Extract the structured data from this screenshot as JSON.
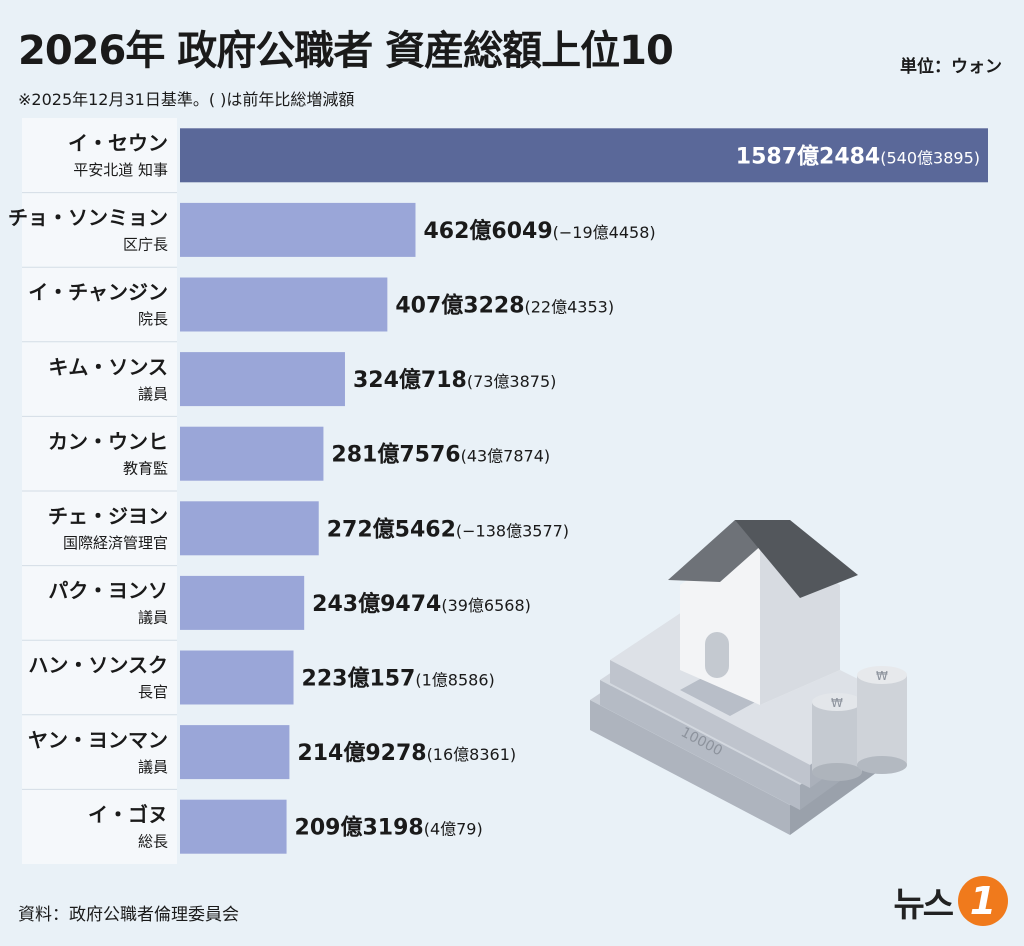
{
  "header": {
    "title": "2026年 政府公職者 資産総額上位10",
    "unit": "単位：ウォン",
    "note": "※2025年12月31日基準。( )は前年比総増減額"
  },
  "footer": {
    "source": "資料：政府公職者倫理委員会",
    "logo_text": "뉴스",
    "logo_badge": "1"
  },
  "illustration": {
    "banknote_label": "10000",
    "coin_symbol": "₩"
  },
  "colors": {
    "top_bar": "#5a6899",
    "bar": "#9aa6d8"
  },
  "chart_data": {
    "type": "bar",
    "orientation": "horizontal",
    "title": "2026年 政府公職者 資産総額上位10",
    "unit": "ウォン",
    "categories": [
      "イ・セウン 平安北道 知事",
      "チョ・ソンミョン 区庁長",
      "イ・チャンジン 院長",
      "キム・ソンス 議員",
      "カン・ウンヒ 教育監",
      "チェ・ジヨン 国際経済管理官",
      "パク・ヨンソ 議員",
      "ハン・ソンスク 長官",
      "ヤン・ヨンマン 議員",
      "イ・ゴヌ 総長"
    ],
    "rows": [
      {
        "name": "イ・セウン",
        "position": "平安北道 知事",
        "value": 1587.2484,
        "label": "1587億2484",
        "change": "(540億3895)"
      },
      {
        "name": "チョ・ソンミョン",
        "position": "区庁長",
        "value": 462.6049,
        "label": "462億6049",
        "change": "(−19億4458)"
      },
      {
        "name": "イ・チャンジン",
        "position": "院長",
        "value": 407.3228,
        "label": "407億3228",
        "change": "(22億4353)"
      },
      {
        "name": "キム・ソンス",
        "position": "議員",
        "value": 324.0718,
        "label": "324億718",
        "change": "(73億3875)"
      },
      {
        "name": "カン・ウンヒ",
        "position": "教育監",
        "value": 281.7576,
        "label": "281億7576",
        "change": "(43億7874)"
      },
      {
        "name": "チェ・ジヨン",
        "position": "国際経済管理官",
        "value": 272.5462,
        "label": "272億5462",
        "change": "(−138億3577)"
      },
      {
        "name": "パク・ヨンソ",
        "position": "議員",
        "value": 243.9474,
        "label": "243億9474",
        "change": "(39億6568)"
      },
      {
        "name": "ハン・ソンスク",
        "position": "長官",
        "value": 223.0157,
        "label": "223億157",
        "change": "(1億8586)"
      },
      {
        "name": "ヤン・ヨンマン",
        "position": "議員",
        "value": 214.9278,
        "label": "214億9278",
        "change": "(16億8361)"
      },
      {
        "name": "イ・ゴヌ",
        "position": "総長",
        "value": 209.3198,
        "label": "209億3198",
        "change": "(4億79)"
      }
    ],
    "values_unit": "億ウォン",
    "xlim": [
      0,
      1587.2484
    ]
  }
}
